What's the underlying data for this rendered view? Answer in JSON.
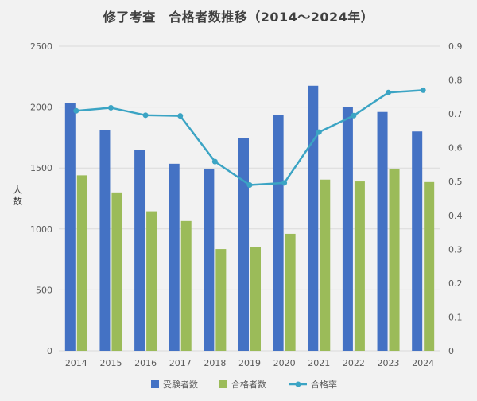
{
  "chart_data": {
    "type": "bar",
    "title": "修了考査　合格者数推移（2014～2024年）",
    "xlabel": "",
    "ylabel": "人数",
    "y2label": "",
    "categories": [
      "2014",
      "2015",
      "2016",
      "2017",
      "2018",
      "2019",
      "2020",
      "2021",
      "2022",
      "2023",
      "2024"
    ],
    "series": [
      {
        "name": "受験者数",
        "type": "bar",
        "axis": "left",
        "color": "#4472c4",
        "values": [
          2030,
          1810,
          1645,
          1535,
          1495,
          1745,
          1935,
          2175,
          2000,
          1960,
          1800
        ]
      },
      {
        "name": "合格者数",
        "type": "bar",
        "axis": "left",
        "color": "#9bbb59",
        "values": [
          1440,
          1300,
          1145,
          1065,
          835,
          855,
          960,
          1405,
          1390,
          1495,
          1385
        ]
      },
      {
        "name": "合格率",
        "type": "line",
        "axis": "right",
        "color": "#3ba4c4",
        "values": [
          0.709,
          0.718,
          0.696,
          0.694,
          0.559,
          0.49,
          0.496,
          0.646,
          0.695,
          0.763,
          0.77
        ]
      }
    ],
    "ylim": [
      0,
      2500
    ],
    "y_ticks": [
      "0",
      "500",
      "1000",
      "1500",
      "2000",
      "2500"
    ],
    "y2lim": [
      0,
      0.9
    ],
    "y2_ticks": [
      "0",
      "0.1",
      "0.2",
      "0.3",
      "0.4",
      "0.5",
      "0.6",
      "0.7",
      "0.8",
      "0.9"
    ],
    "grid": true,
    "legend_position": "bottom"
  }
}
